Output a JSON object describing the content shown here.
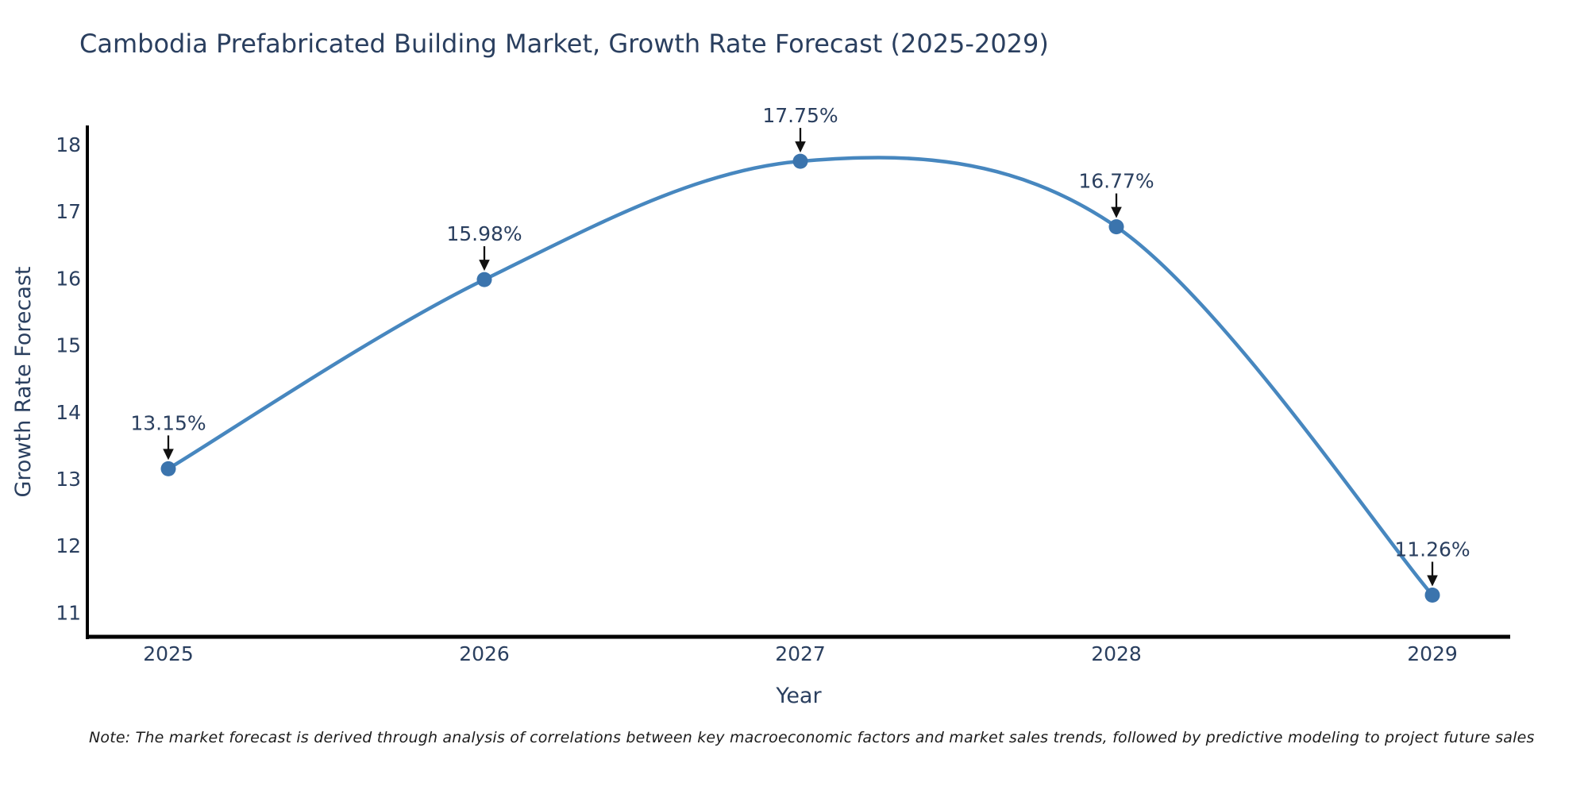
{
  "title": "Cambodia Prefabricated Building Market, Growth Rate Forecast (2025-2029)",
  "note": "Note: The market forecast is derived through analysis of correlations between key macroeconomic factors and market sales trends, followed by predictive modeling to project future sales",
  "chart_data": {
    "type": "line",
    "categories": [
      "2025",
      "2026",
      "2027",
      "2028",
      "2029"
    ],
    "series": [
      {
        "name": "Growth Rate Forecast",
        "values": [
          13.15,
          15.98,
          17.75,
          16.77,
          11.26
        ],
        "point_labels": [
          "13.15%",
          "15.98%",
          "17.75%",
          "16.77%",
          "11.26%"
        ]
      }
    ],
    "xlabel": "Year",
    "ylabel": "Growth Rate Forecast",
    "ylim": [
      11,
      18
    ],
    "yticks": [
      18,
      17,
      16,
      15,
      14,
      13,
      12,
      11
    ],
    "line_shape": "spline",
    "markers": true,
    "grid": false,
    "legend_position": "none",
    "annotations_have_arrows": true,
    "colors": {
      "line": "#4787bf",
      "marker": "#3b74ad",
      "axis": "#000000",
      "text": "#2a3f5f",
      "arrow": "#111111",
      "note_text": "#1c1c1c",
      "background": "#ffffff"
    }
  }
}
